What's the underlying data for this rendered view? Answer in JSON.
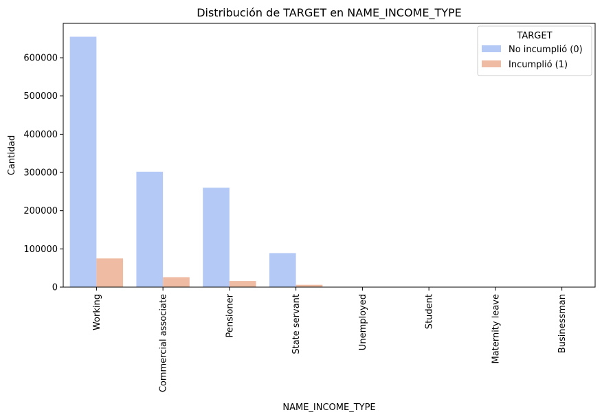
{
  "chart_data": {
    "type": "bar",
    "title": "Distribución de TARGET en NAME_INCOME_TYPE",
    "xlabel": "NAME_INCOME_TYPE",
    "ylabel": "Cantidad",
    "categories": [
      "Working",
      "Commercial associate",
      "Pensioner",
      "State servant",
      "Unemployed",
      "Student",
      "Maternity leave",
      "Businessman"
    ],
    "series": [
      {
        "name": "No incumplió (0)",
        "color": "#b4c9f5",
        "values": [
          655000,
          302000,
          260000,
          89000,
          300,
          100,
          60,
          20
        ]
      },
      {
        "name": "Incumplió (1)",
        "color": "#efbba2",
        "values": [
          75000,
          26000,
          16000,
          6000,
          40,
          0,
          10,
          0
        ]
      }
    ],
    "ylim": [
      0,
      690000
    ],
    "yticks": [
      0,
      100000,
      200000,
      300000,
      400000,
      500000,
      600000
    ],
    "legend": {
      "title": "TARGET",
      "placement": "top-right"
    },
    "grid": false
  }
}
